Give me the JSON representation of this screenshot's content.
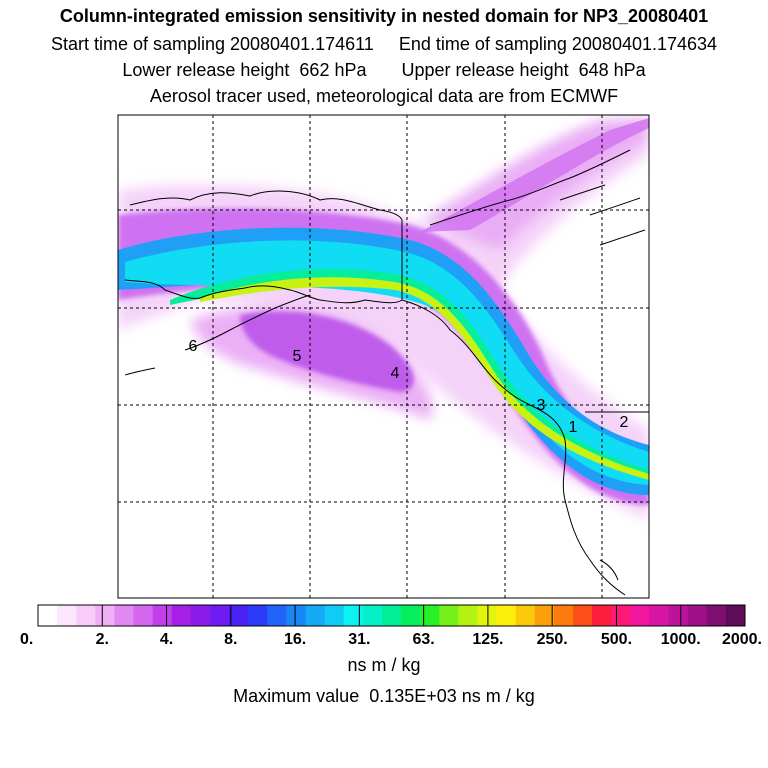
{
  "titles": {
    "line1": "Column-integrated emission sensitivity in nested domain for NP3_20080401",
    "line2": "Start time of sampling 20080401.174611     End time of sampling 20080401.174634",
    "line3": "Lower release height  662 hPa       Upper release height  648 hPa",
    "line4": "Aerosol tracer used, meteorological data are from ECMWF"
  },
  "colorbar": {
    "tick_labels": [
      "0.",
      "2.",
      "4.",
      "8.",
      "16.",
      "31.",
      "63.",
      "125.",
      "250.",
      "500.",
      "1000.",
      "2000."
    ],
    "colors": [
      "#ffffff",
      "#fde6fd",
      "#f8ccf8",
      "#f0b0f6",
      "#e288f3",
      "#d466f0",
      "#c23fec",
      "#a61fe6",
      "#8a1be8",
      "#6e1cf0",
      "#4a22f5",
      "#2b3bf8",
      "#1f63f8",
      "#1a86f6",
      "#15a9f6",
      "#10cbf6",
      "#0cf2f2",
      "#06f0c8",
      "#03ec98",
      "#05ee5e",
      "#28f028",
      "#76f01a",
      "#b4f214",
      "#e0f40e",
      "#fcf00a",
      "#fcc80a",
      "#fca00a",
      "#fc7a0e",
      "#fc4e18",
      "#fc1e3a",
      "#fc1a78",
      "#f0169e",
      "#d814a6",
      "#bc129c",
      "#9e1088",
      "#7e0e70",
      "#5e0c56"
    ],
    "units": "ns m / kg"
  },
  "max_value_text": "Maximum value  0.135E+03 ns m / kg",
  "map_labels": [
    {
      "text": "1"
    },
    {
      "text": "2"
    },
    {
      "text": "3"
    },
    {
      "text": "4"
    },
    {
      "text": "5"
    },
    {
      "text": "6"
    }
  ],
  "colors": {
    "frame": "#000000",
    "grid": "#000000",
    "coastline": "#000000"
  }
}
